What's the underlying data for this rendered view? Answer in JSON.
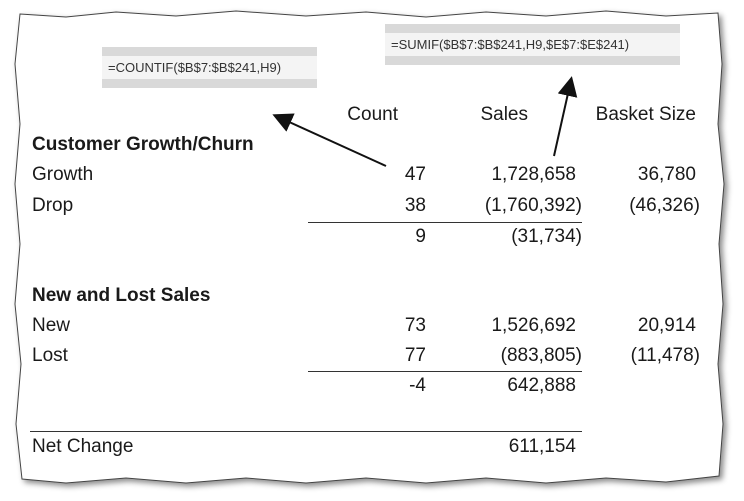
{
  "callouts": {
    "countif": "=COUNTIF($B$7:$B$241,H9)",
    "sumif": "=SUMIF($B$7:$B$241,H9,$E$7:$E$241)"
  },
  "headers": {
    "count": "Count",
    "sales": "Sales",
    "basket": "Basket Size"
  },
  "section1": {
    "title": "Customer Growth/Churn",
    "rows": [
      {
        "label": "Growth",
        "count": "47",
        "sales": "1,728,658",
        "basket": "36,780"
      },
      {
        "label": "Drop",
        "count": "38",
        "sales": "(1,760,392)",
        "basket": "(46,326)"
      }
    ],
    "total": {
      "count": "9",
      "sales": "(31,734)"
    }
  },
  "section2": {
    "title": "New and Lost Sales",
    "rows": [
      {
        "label": "New",
        "count": "73",
        "sales": "1,526,692",
        "basket": "20,914"
      },
      {
        "label": "Lost",
        "count": "77",
        "sales": "(883,805)",
        "basket": "(11,478)"
      }
    ],
    "total": {
      "count": "-4",
      "sales": "642,888"
    }
  },
  "net": {
    "label": "Net Change",
    "sales": "611,154"
  }
}
